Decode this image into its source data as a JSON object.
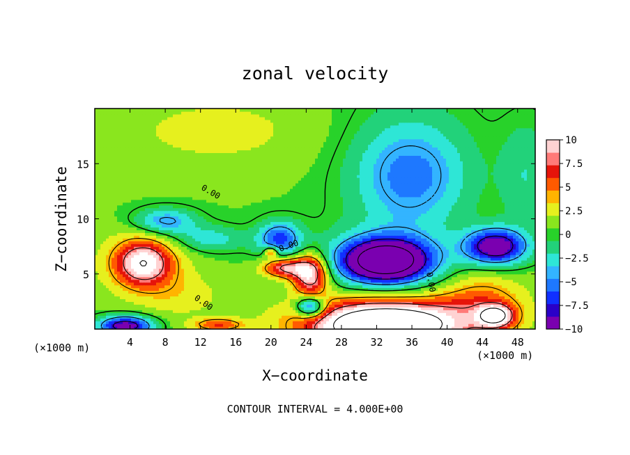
{
  "chart_data": {
    "type": "heatmap",
    "title": "zonal velocity",
    "xlabel": "X−coordinate",
    "ylabel": "Z−coordinate",
    "x_unit_label": "(×1000 m)",
    "z_unit_label": "(×1000 m)",
    "xlim": [
      0,
      50
    ],
    "ylim": [
      0,
      20
    ],
    "x_ticks": [
      4,
      8,
      12,
      16,
      20,
      24,
      28,
      32,
      36,
      40,
      44,
      48
    ],
    "y_ticks": [
      5,
      10,
      15
    ],
    "colorbar": {
      "range": [
        -10,
        10
      ],
      "ticks": [
        10,
        7.5,
        5,
        2.5,
        0,
        -2.5,
        -5,
        -7.5,
        -10
      ],
      "tick_labels": [
        "10",
        "7.5",
        "5",
        "2.5",
        "0",
        "−2.5",
        "−5",
        "−7.5",
        "−10"
      ],
      "colors": [
        "#7a00b0",
        "#2a00c8",
        "#1030ff",
        "#1e78ff",
        "#33b4ff",
        "#2ee6d6",
        "#22d27a",
        "#28d22a",
        "#8ae61e",
        "#e6f01e",
        "#ffb400",
        "#ff5a00",
        "#e6140a",
        "#ff7a78",
        "#ffd2d2"
      ]
    },
    "contour_interval_text": "CONTOUR INTERVAL = 4.000E+00",
    "zero_contour_label": "0.00",
    "background_value": 0.6,
    "features": [
      {
        "x": 5.5,
        "z": 6.0,
        "value": 8.5,
        "rx": 3.0,
        "rz": 1.9
      },
      {
        "x": 5.5,
        "z": 6.0,
        "value": 3.0,
        "rx": 5.5,
        "rz": 3.2
      },
      {
        "x": 3.5,
        "z": 0.3,
        "value": -11,
        "rx": 3.0,
        "rz": 0.9
      },
      {
        "x": 33,
        "z": 0.3,
        "value": 13,
        "rx": 7.5,
        "rz": 2.0
      },
      {
        "x": 33,
        "z": 0.5,
        "value": 6,
        "rx": 11,
        "rz": 2.8
      },
      {
        "x": 33,
        "z": 6.2,
        "value": -14,
        "rx": 4.8,
        "rz": 1.9
      },
      {
        "x": 33,
        "z": 6.2,
        "value": -4,
        "rx": 7.5,
        "rz": 3.0
      },
      {
        "x": 45.5,
        "z": 7.5,
        "value": -11.5,
        "rx": 3.4,
        "rz": 1.6
      },
      {
        "x": 45.5,
        "z": 1.2,
        "value": 10,
        "rx": 2.0,
        "rz": 1.0
      },
      {
        "x": 44,
        "z": 2.5,
        "value": 4,
        "rx": 5,
        "rz": 2.8
      },
      {
        "x": 24.5,
        "z": 5.0,
        "value": 10,
        "rx": 2.0,
        "rz": 1.8
      },
      {
        "x": 21.5,
        "z": 5.6,
        "value": 8,
        "rx": 2.5,
        "rz": 0.9
      },
      {
        "x": 24.5,
        "z": 2.0,
        "value": -9,
        "rx": 1.6,
        "rz": 0.9
      },
      {
        "x": 21,
        "z": 8.2,
        "value": -7,
        "rx": 2.5,
        "rz": 1.6
      },
      {
        "x": 20,
        "z": 7.0,
        "value": 6,
        "rx": 0.8,
        "rz": 0.5
      },
      {
        "x": 36,
        "z": 13.5,
        "value": -4.5,
        "rx": 6,
        "rz": 4.5
      },
      {
        "x": 8,
        "z": 9.8,
        "value": -5.5,
        "rx": 3.5,
        "rz": 1.2
      },
      {
        "x": 13,
        "z": 8.2,
        "value": -3.5,
        "rx": 4,
        "rz": 1.2
      },
      {
        "x": 14,
        "z": 18,
        "value": 1.8,
        "rx": 14,
        "rz": 4
      },
      {
        "x": 35,
        "z": 16,
        "value": -2.0,
        "rx": 8,
        "rz": 6
      },
      {
        "x": 14,
        "z": 0.4,
        "value": 5,
        "rx": 3,
        "rz": 0.6
      },
      {
        "x": 10,
        "z": 3.0,
        "value": 1.8,
        "rx": 5,
        "rz": 2.0
      },
      {
        "x": 49,
        "z": 14,
        "value": -2.5,
        "rx": 3,
        "rz": 5
      }
    ]
  }
}
